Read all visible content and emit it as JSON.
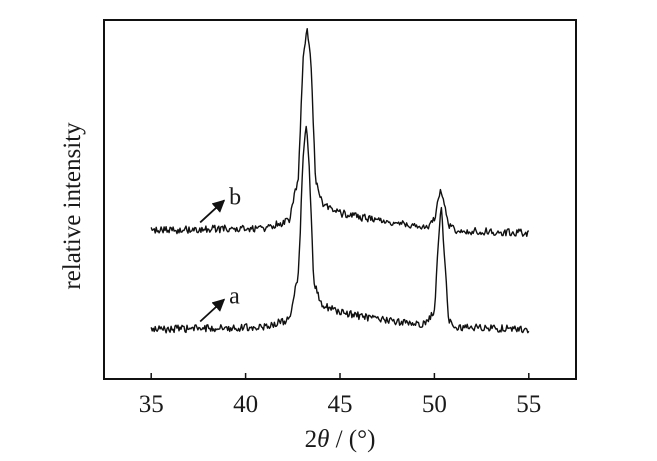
{
  "chart_data": {
    "type": "line",
    "xlabel_prefix": "2",
    "xlabel_symbol": "θ",
    "xlabel_suffix": " / (°)",
    "ylabel": "relative intensity",
    "xlim": [
      32.5,
      57.5
    ],
    "xticks": [
      "35",
      "40",
      "45",
      "50",
      "55"
    ],
    "y_ticks_shown": false,
    "grid": false,
    "line_color": "#111111",
    "series": [
      {
        "name": "a",
        "baseline": 0.2,
        "points": [
          [
            35.0,
            0.2
          ],
          [
            41.0,
            0.21
          ],
          [
            42.3,
            0.24
          ],
          [
            42.8,
            0.42
          ],
          [
            43.05,
            0.9
          ],
          [
            43.2,
            1.02
          ],
          [
            43.35,
            0.9
          ],
          [
            43.6,
            0.4
          ],
          [
            44.0,
            0.3
          ],
          [
            45.0,
            0.27
          ],
          [
            47.0,
            0.24
          ],
          [
            49.5,
            0.22
          ],
          [
            50.0,
            0.27
          ],
          [
            50.2,
            0.55
          ],
          [
            50.35,
            0.7
          ],
          [
            50.5,
            0.55
          ],
          [
            50.75,
            0.24
          ],
          [
            51.2,
            0.21
          ],
          [
            55.0,
            0.2
          ]
        ],
        "markers": [
          {
            "x": 37.7,
            "label": "a"
          }
        ]
      },
      {
        "name": "b",
        "baseline": 0.6,
        "points": [
          [
            35.0,
            0.6
          ],
          [
            41.0,
            0.61
          ],
          [
            42.3,
            0.64
          ],
          [
            42.8,
            0.82
          ],
          [
            43.05,
            1.3
          ],
          [
            43.25,
            1.42
          ],
          [
            43.45,
            1.3
          ],
          [
            43.7,
            0.8
          ],
          [
            44.1,
            0.7
          ],
          [
            45.0,
            0.67
          ],
          [
            47.0,
            0.64
          ],
          [
            49.5,
            0.61
          ],
          [
            50.0,
            0.64
          ],
          [
            50.2,
            0.72
          ],
          [
            50.35,
            0.76
          ],
          [
            50.5,
            0.72
          ],
          [
            50.8,
            0.62
          ],
          [
            51.2,
            0.6
          ],
          [
            55.0,
            0.59
          ]
        ],
        "markers": [
          {
            "x": 37.7,
            "label": "b"
          }
        ]
      }
    ]
  }
}
